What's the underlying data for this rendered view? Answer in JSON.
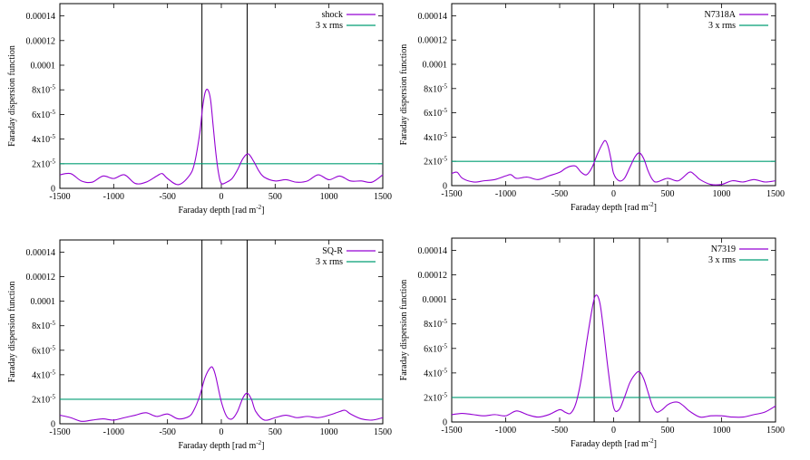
{
  "colors": {
    "curve": "#9400d3",
    "rms": "#009e73",
    "marker": "#000000",
    "axes": "#000000"
  },
  "chart_data": [
    {
      "type": "line",
      "xlabel": "Faraday depth [rad m-2]",
      "ylabel": "Faraday dispersion function",
      "xlim": [
        -1500,
        1500
      ],
      "ylim": [
        0,
        0.00015
      ],
      "x_ticks": [
        -1500,
        -1000,
        -500,
        0,
        500,
        1000,
        1500
      ],
      "y_ticks": [
        0,
        2e-05,
        4e-05,
        6e-05,
        8e-05,
        0.0001,
        0.00012,
        0.00014
      ],
      "y_tick_labels": [
        "0",
        "2x10-5",
        "4x10-5",
        "6x10-5",
        "8x10-5",
        "0.0001",
        "0.00012",
        "0.00014"
      ],
      "vertical_lines": [
        -180,
        240
      ],
      "legend_position": "top-right",
      "rms_line": {
        "name": "3 x rms",
        "value": 2e-05
      },
      "series": [
        {
          "name": "shock",
          "x": [
            -1500,
            -1400,
            -1300,
            -1200,
            -1100,
            -1000,
            -900,
            -800,
            -700,
            -600,
            -550,
            -500,
            -400,
            -300,
            -250,
            -200,
            -175,
            -150,
            -125,
            -100,
            -75,
            -50,
            -25,
            0,
            50,
            100,
            150,
            200,
            250,
            300,
            350,
            400,
            500,
            600,
            700,
            800,
            900,
            1000,
            1100,
            1200,
            1300,
            1400,
            1500
          ],
          "y": [
            1.1e-05,
            1.2e-05,
            6e-06,
            5e-06,
            1e-05,
            8e-06,
            1.1e-05,
            4e-06,
            5e-06,
            1e-05,
            1.2e-05,
            8e-06,
            3e-06,
            1e-05,
            2e-05,
            4.5e-05,
            6.5e-05,
            7.8e-05,
            8e-05,
            7.2e-05,
            5e-05,
            2.8e-05,
            1.2e-05,
            4e-06,
            5e-06,
            8e-06,
            1.5e-05,
            2.4e-05,
            2.8e-05,
            2.2e-05,
            1.4e-05,
            9e-06,
            6e-06,
            7e-06,
            5e-06,
            6e-06,
            1.1e-05,
            7e-06,
            1e-05,
            6e-06,
            6e-06,
            5e-06,
            1.1e-05
          ]
        }
      ]
    },
    {
      "type": "line",
      "xlabel": "Faraday depth [rad m-2]",
      "ylabel": "Faraday dispersion function",
      "xlim": [
        -1500,
        1500
      ],
      "ylim": [
        0,
        0.00015
      ],
      "x_ticks": [
        -1500,
        -1000,
        -500,
        0,
        500,
        1000,
        1500
      ],
      "y_ticks": [
        0,
        2e-05,
        4e-05,
        6e-05,
        8e-05,
        0.0001,
        0.00012,
        0.00014
      ],
      "y_tick_labels": [
        "0",
        "2x10-5",
        "4x10-5",
        "6x10-5",
        "8x10-5",
        "0.0001",
        "0.00012",
        "0.00014"
      ],
      "vertical_lines": [
        -180,
        240
      ],
      "legend_position": "top-right",
      "rms_line": {
        "name": "3 x rms",
        "value": 2e-05
      },
      "series": [
        {
          "name": "N7318A",
          "x": [
            -1500,
            -1450,
            -1400,
            -1300,
            -1200,
            -1100,
            -1000,
            -950,
            -900,
            -800,
            -700,
            -600,
            -500,
            -450,
            -400,
            -350,
            -300,
            -250,
            -200,
            -150,
            -100,
            -75,
            -50,
            -25,
            0,
            50,
            100,
            150,
            200,
            240,
            280,
            320,
            360,
            400,
            500,
            600,
            700,
            750,
            800,
            900,
            1000,
            1100,
            1200,
            1300,
            1400,
            1500
          ],
          "y": [
            1e-05,
            1.1e-05,
            6e-06,
            3e-06,
            4e-06,
            5e-06,
            8e-06,
            9e-06,
            6e-06,
            7e-06,
            5e-06,
            8e-06,
            1.1e-05,
            1.4e-05,
            1.6e-05,
            1.6e-05,
            1.1e-05,
            9e-06,
            1.5e-05,
            2.6e-05,
            3.5e-05,
            3.7e-05,
            3.2e-05,
            2.2e-05,
            1e-05,
            4e-06,
            6e-06,
            1.5e-05,
            2.4e-05,
            2.7e-05,
            2.2e-05,
            1.2e-05,
            5e-06,
            3e-06,
            6e-06,
            4e-06,
            1.1e-05,
            9e-06,
            5e-06,
            1e-06,
            1e-06,
            4e-06,
            3e-06,
            5e-06,
            3e-06,
            4e-06
          ]
        }
      ]
    },
    {
      "type": "line",
      "xlabel": "Faraday depth [rad m-2]",
      "ylabel": "Faraday dispersion function",
      "xlim": [
        -1500,
        1500
      ],
      "ylim": [
        0,
        0.00015
      ],
      "x_ticks": [
        -1500,
        -1000,
        -500,
        0,
        500,
        1000,
        1500
      ],
      "y_ticks": [
        0,
        2e-05,
        4e-05,
        6e-05,
        8e-05,
        0.0001,
        0.00012,
        0.00014
      ],
      "y_tick_labels": [
        "0",
        "2x10-5",
        "4x10-5",
        "6x10-5",
        "8x10-5",
        "0.0001",
        "0.00012",
        "0.00014"
      ],
      "vertical_lines": [
        -180,
        240
      ],
      "legend_position": "top-right",
      "rms_line": {
        "name": "3 x rms",
        "value": 2e-05
      },
      "series": [
        {
          "name": "SQ-R",
          "x": [
            -1500,
            -1400,
            -1300,
            -1200,
            -1100,
            -1000,
            -900,
            -800,
            -700,
            -600,
            -500,
            -400,
            -300,
            -250,
            -200,
            -150,
            -100,
            -75,
            -50,
            0,
            50,
            100,
            150,
            200,
            240,
            280,
            320,
            400,
            500,
            600,
            700,
            800,
            900,
            1000,
            1100,
            1150,
            1200,
            1300,
            1400,
            1500
          ],
          "y": [
            7e-06,
            5e-06,
            2e-06,
            3e-06,
            4e-06,
            3e-06,
            5e-06,
            7e-06,
            9e-06,
            6e-06,
            8e-06,
            4e-06,
            6e-06,
            1.2e-05,
            2.3e-05,
            3.8e-05,
            4.6e-05,
            4.5e-05,
            3.8e-05,
            1.8e-05,
            6e-06,
            4e-06,
            1e-05,
            2.1e-05,
            2.5e-05,
            2e-05,
            1e-05,
            3e-06,
            5e-06,
            7e-06,
            5e-06,
            6e-06,
            5e-06,
            7e-06,
            1e-05,
            1.1e-05,
            8e-06,
            4e-06,
            3e-06,
            5e-06
          ]
        }
      ]
    },
    {
      "type": "line",
      "xlabel": "Faraday depth [rad m-2]",
      "ylabel": "Faraday dispersion function",
      "xlim": [
        -1500,
        1500
      ],
      "ylim": [
        0,
        0.00015
      ],
      "x_ticks": [
        -1500,
        -1000,
        -500,
        0,
        500,
        1000,
        1500
      ],
      "y_ticks": [
        0,
        2e-05,
        4e-05,
        6e-05,
        8e-05,
        0.0001,
        0.00012,
        0.00014
      ],
      "y_tick_labels": [
        "0",
        "2x10-5",
        "4x10-5",
        "6x10-5",
        "8x10-5",
        "0.0001",
        "0.00012",
        "0.00014"
      ],
      "vertical_lines": [
        -180,
        240
      ],
      "legend_position": "top-right",
      "rms_line": {
        "name": "3 x rms",
        "value": 2e-05
      },
      "series": [
        {
          "name": "N7319",
          "x": [
            -1500,
            -1400,
            -1300,
            -1200,
            -1100,
            -1000,
            -900,
            -800,
            -700,
            -600,
            -500,
            -450,
            -400,
            -350,
            -300,
            -250,
            -200,
            -175,
            -150,
            -125,
            -100,
            -50,
            0,
            50,
            100,
            150,
            200,
            240,
            280,
            320,
            360,
            400,
            450,
            500,
            550,
            600,
            650,
            700,
            800,
            900,
            1000,
            1100,
            1200,
            1300,
            1400,
            1500
          ],
          "y": [
            6e-06,
            7e-06,
            6e-06,
            5e-06,
            6e-06,
            5e-06,
            9e-06,
            6e-06,
            4e-06,
            6e-06,
            1e-05,
            8e-06,
            7e-06,
            1.5e-05,
            3.5e-05,
            6.5e-05,
            9.2e-05,
            0.000102,
            0.000103,
            9.6e-05,
            8e-05,
            4.2e-05,
            1.2e-05,
            1e-05,
            2e-05,
            3.2e-05,
            3.9e-05,
            4.1e-05,
            3.5e-05,
            2.4e-05,
            1.3e-05,
            8e-06,
            1e-05,
            1.4e-05,
            1.6e-05,
            1.6e-05,
            1.3e-05,
            9e-06,
            4e-06,
            5e-06,
            5e-06,
            4e-06,
            4e-06,
            6e-06,
            8e-06,
            1.3e-05
          ]
        }
      ]
    }
  ]
}
